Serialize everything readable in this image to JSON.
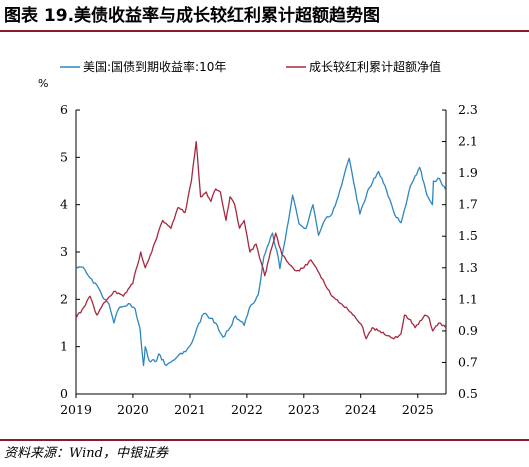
{
  "header": {
    "title": "图表 19.美债收益率与成长较红利累计超额趋势图"
  },
  "footer": {
    "source": "资料来源：Wind，中银证券"
  },
  "chart_data": {
    "type": "line",
    "title": "图表 19.美债收益率与成长较红利累计超额趋势图",
    "left_axis_unit": "%",
    "legend_position": "top",
    "grid": false,
    "x_ticks": [
      "2019",
      "2020",
      "2021",
      "2022",
      "2023",
      "2024",
      "2025"
    ],
    "xlim": [
      "2019-01-01",
      "2025-07-01"
    ],
    "left_ylim": [
      0,
      6
    ],
    "left_ticks": [
      "0",
      "1",
      "2",
      "3",
      "4",
      "5",
      "6"
    ],
    "right_ylim": [
      0.5,
      2.3
    ],
    "right_ticks": [
      "0.5",
      "0.7",
      "0.9",
      "1.1",
      "1.3",
      "1.5",
      "1.7",
      "1.9",
      "2.1",
      "2.3"
    ],
    "series": [
      {
        "name": "美国:国债到期收益率:10年",
        "axis": "left",
        "color": "#2e86c1",
        "points": [
          [
            "2019-01-01",
            2.7
          ],
          [
            "2019-02-15",
            2.68
          ],
          [
            "2019-04-01",
            2.45
          ],
          [
            "2019-05-15",
            2.3
          ],
          [
            "2019-07-01",
            2.0
          ],
          [
            "2019-08-01",
            1.9
          ],
          [
            "2019-09-01",
            1.5
          ],
          [
            "2019-10-01",
            1.8
          ],
          [
            "2019-11-01",
            1.85
          ],
          [
            "2019-12-15",
            1.9
          ],
          [
            "2020-01-15",
            1.8
          ],
          [
            "2020-02-15",
            1.4
          ],
          [
            "2020-03-09",
            0.6
          ],
          [
            "2020-03-20",
            1.0
          ],
          [
            "2020-04-15",
            0.7
          ],
          [
            "2020-06-01",
            0.7
          ],
          [
            "2020-06-15",
            0.85
          ],
          [
            "2020-08-01",
            0.6
          ],
          [
            "2020-10-01",
            0.75
          ],
          [
            "2020-12-15",
            0.95
          ],
          [
            "2021-01-15",
            1.1
          ],
          [
            "2021-02-15",
            1.4
          ],
          [
            "2021-03-31",
            1.7
          ],
          [
            "2021-05-15",
            1.6
          ],
          [
            "2021-06-15",
            1.5
          ],
          [
            "2021-08-01",
            1.2
          ],
          [
            "2021-09-15",
            1.4
          ],
          [
            "2021-10-20",
            1.65
          ],
          [
            "2021-12-15",
            1.45
          ],
          [
            "2022-01-15",
            1.8
          ],
          [
            "2022-03-15",
            2.1
          ],
          [
            "2022-04-20",
            2.9
          ],
          [
            "2022-06-14",
            3.4
          ],
          [
            "2022-07-20",
            2.9
          ],
          [
            "2022-08-01",
            2.65
          ],
          [
            "2022-09-15",
            3.5
          ],
          [
            "2022-10-21",
            4.2
          ],
          [
            "2022-12-01",
            3.6
          ],
          [
            "2023-01-15",
            3.5
          ],
          [
            "2023-03-01",
            4.0
          ],
          [
            "2023-04-05",
            3.35
          ],
          [
            "2023-05-20",
            3.7
          ],
          [
            "2023-07-01",
            3.8
          ],
          [
            "2023-08-20",
            4.3
          ],
          [
            "2023-10-19",
            4.98
          ],
          [
            "2023-12-27",
            3.8
          ],
          [
            "2024-02-15",
            4.3
          ],
          [
            "2024-04-25",
            4.7
          ],
          [
            "2024-06-15",
            4.3
          ],
          [
            "2024-08-05",
            3.8
          ],
          [
            "2024-09-16",
            3.62
          ],
          [
            "2024-11-15",
            4.4
          ],
          [
            "2025-01-13",
            4.79
          ],
          [
            "2025-03-01",
            4.2
          ],
          [
            "2025-04-05",
            4.0
          ],
          [
            "2025-04-11",
            4.5
          ],
          [
            "2025-05-20",
            4.55
          ],
          [
            "2025-06-30",
            4.3
          ]
        ]
      },
      {
        "name": "成长较红利累计超额净值",
        "axis": "right",
        "color": "#a52a3f",
        "points": [
          [
            "2019-01-01",
            0.98
          ],
          [
            "2019-02-20",
            1.05
          ],
          [
            "2019-04-01",
            1.12
          ],
          [
            "2019-05-15",
            1.0
          ],
          [
            "2019-07-01",
            1.08
          ],
          [
            "2019-09-01",
            1.15
          ],
          [
            "2019-11-01",
            1.12
          ],
          [
            "2019-12-31",
            1.2
          ],
          [
            "2020-02-20",
            1.4
          ],
          [
            "2020-03-20",
            1.3
          ],
          [
            "2020-05-01",
            1.4
          ],
          [
            "2020-07-10",
            1.6
          ],
          [
            "2020-09-01",
            1.55
          ],
          [
            "2020-10-15",
            1.68
          ],
          [
            "2020-12-01",
            1.65
          ],
          [
            "2021-01-10",
            1.85
          ],
          [
            "2021-02-10",
            2.1
          ],
          [
            "2021-03-10",
            1.75
          ],
          [
            "2021-04-15",
            1.78
          ],
          [
            "2021-05-15",
            1.72
          ],
          [
            "2021-06-15",
            1.8
          ],
          [
            "2021-07-15",
            1.78
          ],
          [
            "2021-08-20",
            1.6
          ],
          [
            "2021-09-15",
            1.75
          ],
          [
            "2021-10-15",
            1.7
          ],
          [
            "2021-11-15",
            1.55
          ],
          [
            "2021-12-15",
            1.6
          ],
          [
            "2022-01-20",
            1.4
          ],
          [
            "2022-03-01",
            1.45
          ],
          [
            "2022-04-26",
            1.25
          ],
          [
            "2022-06-01",
            1.4
          ],
          [
            "2022-07-05",
            1.52
          ],
          [
            "2022-08-15",
            1.38
          ],
          [
            "2022-10-01",
            1.32
          ],
          [
            "2022-11-15",
            1.28
          ],
          [
            "2023-01-01",
            1.3
          ],
          [
            "2023-02-15",
            1.35
          ],
          [
            "2023-04-01",
            1.28
          ],
          [
            "2023-05-15",
            1.2
          ],
          [
            "2023-07-01",
            1.12
          ],
          [
            "2023-08-15",
            1.08
          ],
          [
            "2023-10-01",
            1.05
          ],
          [
            "2023-12-01",
            0.98
          ],
          [
            "2024-01-15",
            0.92
          ],
          [
            "2024-02-05",
            0.85
          ],
          [
            "2024-03-15",
            0.92
          ],
          [
            "2024-05-01",
            0.9
          ],
          [
            "2024-06-15",
            0.87
          ],
          [
            "2024-08-01",
            0.85
          ],
          [
            "2024-09-15",
            0.88
          ],
          [
            "2024-10-08",
            1.0
          ],
          [
            "2024-11-15",
            0.97
          ],
          [
            "2024-12-15",
            0.92
          ],
          [
            "2025-02-15",
            1.0
          ],
          [
            "2025-03-15",
            0.98
          ],
          [
            "2025-04-07",
            0.9
          ],
          [
            "2025-05-15",
            0.95
          ],
          [
            "2025-06-30",
            0.92
          ]
        ]
      }
    ]
  }
}
